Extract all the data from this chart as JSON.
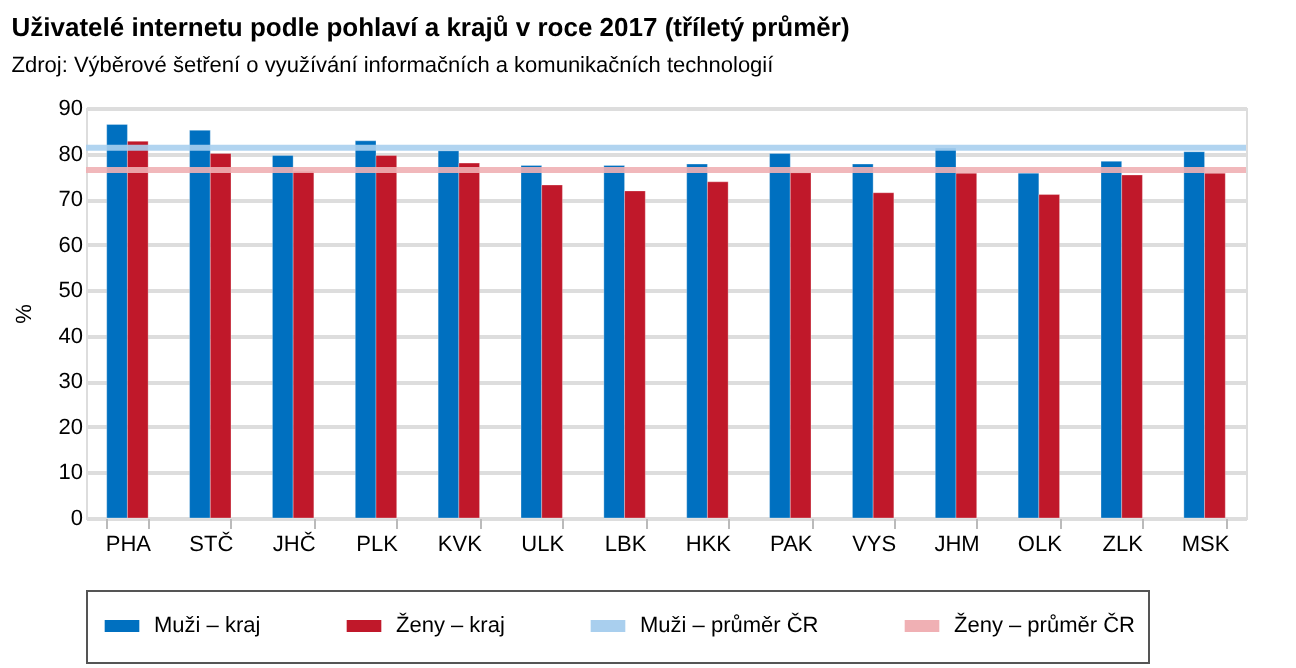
{
  "chart_data": {
    "type": "bar",
    "title": "Uživatelé internetu podle pohlaví a krajů v roce 2017 (tříletý průměr)",
    "subtitle": "Zdroj: Výběrové šetření o využívání informačních a komunikačních technologií",
    "ylabel": "%",
    "categories": [
      "PHA",
      "STČ",
      "JHČ",
      "PLK",
      "KVK",
      "ULK",
      "LBK",
      "HKK",
      "PAK",
      "VYS",
      "JHM",
      "OLK",
      "ZLK",
      "MSK"
    ],
    "series": [
      {
        "name": "Muži – kraj",
        "color": "#0070c0",
        "values": [
          86.4,
          85.1,
          79.6,
          82.8,
          80.6,
          77.4,
          77.4,
          77.7,
          80.0,
          77.7,
          81.2,
          75.7,
          78.3,
          80.4
        ]
      },
      {
        "name": "Ženy – kraj",
        "color": "#c0182a",
        "values": [
          82.7,
          80.0,
          76.1,
          79.6,
          77.9,
          73.1,
          71.8,
          73.8,
          75.8,
          71.4,
          75.7,
          71.0,
          75.3,
          75.7
        ]
      }
    ],
    "ref_lines": [
      {
        "axis": "y",
        "value": 81.3,
        "label": "Muži – průměr ČR",
        "color": "#a9cfee"
      },
      {
        "axis": "y",
        "value": 76.4,
        "label": "Ženy – průměr ČR",
        "color": "#f0b0b4"
      }
    ],
    "ylim": [
      0,
      90
    ],
    "yticks": [
      0,
      10,
      20,
      30,
      40,
      50,
      60,
      70,
      80,
      90
    ],
    "grid": "y",
    "legend": "bottom"
  }
}
